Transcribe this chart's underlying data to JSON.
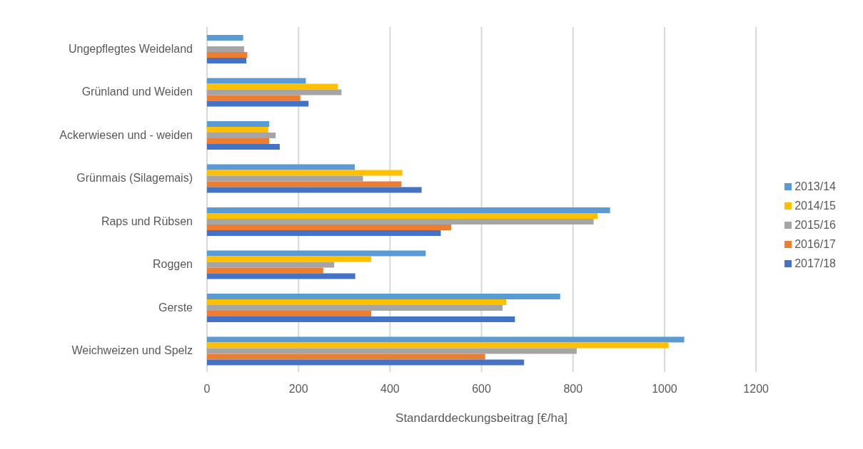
{
  "chart_data": {
    "type": "bar",
    "orientation": "horizontal",
    "xlabel": "Standarddeckungsbeitrag [€/ha]",
    "categories": [
      "Ungepflegtes Weideland",
      "Grünland und Weiden",
      "Ackerwiesen und - weiden",
      "Grünmais (Silagemais)",
      "Raps und Rübsen",
      "Roggen",
      "Gerste",
      "Weichweizen und Spelz"
    ],
    "series": [
      {
        "name": "2013/14",
        "color": "#5b9bd5",
        "values": [
          79,
          216,
          136,
          323,
          881,
          478,
          772,
          1043
        ]
      },
      {
        "name": "2014/15",
        "color": "#ffc000",
        "values": [
          null,
          286,
          134,
          427,
          854,
          359,
          654,
          1009
        ]
      },
      {
        "name": "2015/16",
        "color": "#a5a5a5",
        "values": [
          81,
          294,
          150,
          341,
          845,
          278,
          646,
          808
        ]
      },
      {
        "name": "2016/17",
        "color": "#ed7d31",
        "values": [
          88,
          204,
          136,
          425,
          534,
          254,
          359,
          608
        ]
      },
      {
        "name": "2017/18",
        "color": "#4472c4",
        "values": [
          86,
          222,
          159,
          469,
          511,
          324,
          673,
          693
        ]
      }
    ],
    "xlim": [
      0,
      1200
    ],
    "xticks": [
      0,
      200,
      400,
      600,
      800,
      1000,
      1200
    ],
    "grid": "x",
    "legend": "right"
  }
}
